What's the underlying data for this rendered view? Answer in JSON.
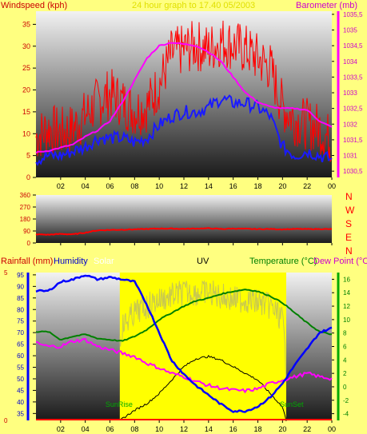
{
  "colors": {
    "background": "#ffff80",
    "wind_label": "#cc0000",
    "baro_label": "#cc00cc",
    "wind_avg": "#1a1aff",
    "wind_gust": "#ff0000",
    "barometer": "#ff00ff",
    "direction": "#ff0000",
    "humidity": "#0000ff",
    "solar": "#ffff00",
    "uv": "#000000",
    "temperature": "#008000",
    "dew_point": "#ff00ff",
    "rainfall": "#ff0000"
  },
  "top": {
    "left_title": "Windspeed (kph)",
    "center_title": "24 hour graph to 17.40 05/2003",
    "right_title": "Barometer (mb)"
  },
  "middle": {
    "dir_labels": [
      "N",
      "W",
      "S",
      "E",
      "N"
    ]
  },
  "bottom": {
    "rain_title": "Rainfall (mm)",
    "humidity_title": "Humidity",
    "solar_title": "Solar",
    "uv_title": "UV",
    "temp_title": "Temperature (°C)",
    "dew_title": "Dew Point (°C)",
    "sunrise_label": "SunRise",
    "sunset_label": "SunSet"
  },
  "chart_data": [
    {
      "type": "line",
      "name": "wind-barometer",
      "x_ticks": [
        "02",
        "04",
        "06",
        "08",
        "10",
        "12",
        "14",
        "16",
        "18",
        "20",
        "22",
        "00"
      ],
      "y_left": {
        "label": "Windspeed (kph)",
        "ylim": [
          0,
          38
        ],
        "ticks": [
          0,
          5,
          10,
          15,
          20,
          25,
          30,
          35
        ]
      },
      "y_right": {
        "label": "Barometer (mb)",
        "ylim": [
          1030.3,
          1035.6
        ],
        "ticks": [
          "1030,5",
          "1031",
          "1031,5",
          "1032",
          "1032,5",
          "1033",
          "1033,5",
          "1034",
          "1034,5",
          "1035",
          "1035,5"
        ]
      },
      "series": [
        {
          "name": "Wind gust",
          "x": [
            0,
            1,
            2,
            3,
            4,
            5,
            6,
            7,
            8,
            9,
            10,
            11,
            12,
            13,
            14,
            15,
            16,
            17,
            18,
            19,
            20,
            21,
            22,
            23,
            24
          ],
          "values": [
            8,
            10,
            9,
            10,
            13,
            16,
            18,
            16,
            14,
            15,
            20,
            27,
            28,
            29,
            28,
            30,
            29,
            28,
            26,
            24,
            15,
            12,
            11,
            10,
            7
          ]
        },
        {
          "name": "Wind speed",
          "x": [
            0,
            1,
            2,
            3,
            4,
            5,
            6,
            7,
            8,
            9,
            10,
            11,
            12,
            13,
            14,
            15,
            16,
            17,
            18,
            19,
            20,
            21,
            22,
            23,
            24
          ],
          "values": [
            4,
            5,
            5,
            6,
            7,
            9,
            9,
            9,
            8,
            9,
            12,
            14,
            15,
            15,
            16,
            18,
            17,
            17,
            16,
            14,
            7,
            5,
            6,
            5,
            4
          ]
        },
        {
          "name": "Barometer",
          "x": [
            0,
            1,
            2,
            3,
            4,
            5,
            6,
            7,
            8,
            9,
            10,
            11,
            12,
            13,
            14,
            15,
            16,
            17,
            18,
            19,
            20,
            21,
            22,
            23,
            24
          ],
          "values": [
            1031.1,
            1031.15,
            1031.25,
            1031.35,
            1031.6,
            1031.8,
            1032.1,
            1032.7,
            1033.4,
            1034.1,
            1034.5,
            1034.6,
            1034.55,
            1034.5,
            1034.3,
            1034.0,
            1033.5,
            1033.0,
            1032.7,
            1032.55,
            1032.5,
            1032.5,
            1032.45,
            1032.1,
            1031.9
          ]
        }
      ]
    },
    {
      "type": "line",
      "name": "wind-direction",
      "x_ticks": [
        "02",
        "04",
        "06",
        "08",
        "10",
        "12",
        "14",
        "16",
        "18",
        "20",
        "22",
        "00"
      ],
      "y_left": {
        "ylim": [
          0,
          360
        ],
        "ticks": [
          0,
          90,
          180,
          270,
          360
        ]
      },
      "series": [
        {
          "name": "Wind direction",
          "x": [
            0,
            1,
            2,
            3,
            4,
            5,
            6,
            7,
            8,
            9,
            10,
            11,
            12,
            13,
            14,
            15,
            16,
            17,
            18,
            19,
            20,
            21,
            22,
            23,
            24
          ],
          "values": [
            65,
            62,
            68,
            65,
            78,
            95,
            98,
            100,
            102,
            105,
            108,
            108,
            106,
            108,
            110,
            105,
            108,
            106,
            104,
            105,
            103,
            105,
            104,
            105,
            103
          ]
        }
      ]
    },
    {
      "type": "line",
      "name": "humidity-temperature",
      "x_ticks": [
        "02",
        "04",
        "06",
        "08",
        "10",
        "12",
        "14",
        "16",
        "18",
        "20",
        "22",
        "00"
      ],
      "y_left_rain": {
        "ylim": [
          0,
          5
        ],
        "ticks": [
          0,
          5
        ]
      },
      "y_left_humidity": {
        "ylim": [
          32,
          96
        ],
        "ticks": [
          35,
          40,
          45,
          50,
          55,
          60,
          65,
          70,
          75,
          80,
          85,
          90,
          95
        ]
      },
      "y_right": {
        "ylim": [
          -5,
          17
        ],
        "ticks": [
          -4,
          -2,
          0,
          2,
          4,
          6,
          8,
          10,
          12,
          14,
          16
        ]
      },
      "sun": {
        "rise_hour": 6.8,
        "set_hour": 20.3
      },
      "series": [
        {
          "name": "Humidity",
          "x": [
            0,
            1,
            2,
            3,
            4,
            5,
            6,
            7,
            8,
            9,
            10,
            11,
            12,
            13,
            14,
            15,
            16,
            17,
            18,
            19,
            20,
            21,
            22,
            23,
            24
          ],
          "values": [
            88,
            88,
            92,
            93,
            95,
            93,
            94,
            93,
            92,
            82,
            70,
            58,
            52,
            47,
            43,
            39,
            36,
            36,
            38,
            42,
            48,
            56,
            63,
            70,
            72
          ]
        },
        {
          "name": "Temperature",
          "x": [
            0,
            1,
            2,
            3,
            4,
            5,
            6,
            7,
            8,
            9,
            10,
            11,
            12,
            13,
            14,
            15,
            16,
            17,
            18,
            19,
            20,
            21,
            22,
            23,
            24
          ],
          "values": [
            8.2,
            8.2,
            7.0,
            7.5,
            7.8,
            7.2,
            7.0,
            6.8,
            7.5,
            8.5,
            10,
            11,
            12,
            12.8,
            13.2,
            13.8,
            14.2,
            14.5,
            14.2,
            13.5,
            12.5,
            11,
            9.5,
            8.2,
            7.8
          ]
        },
        {
          "name": "Dew Point",
          "x": [
            0,
            1,
            2,
            3,
            4,
            5,
            6,
            7,
            8,
            9,
            10,
            11,
            12,
            13,
            14,
            15,
            16,
            17,
            18,
            19,
            20,
            21,
            22,
            23,
            24
          ],
          "values": [
            6.5,
            6.0,
            6.0,
            6.8,
            7.0,
            6.0,
            5.5,
            5.0,
            4.5,
            3.5,
            2.8,
            2.0,
            1.5,
            0.8,
            0.2,
            -0.2,
            -0.5,
            -0.6,
            -0.3,
            0.5,
            1.0,
            1.5,
            2.0,
            1.5,
            1.2
          ]
        },
        {
          "name": "Solar",
          "x": [
            6.5,
            7,
            8,
            9,
            10,
            11,
            12,
            13,
            14,
            15,
            16,
            17,
            18,
            19,
            20,
            20.3
          ],
          "values": [
            5,
            11,
            13,
            14,
            15,
            15.5,
            16,
            16,
            16,
            15.5,
            15,
            15,
            14.5,
            14,
            12,
            5
          ]
        },
        {
          "name": "UV",
          "x": [
            6.8,
            8,
            9,
            10,
            11,
            12,
            13,
            14,
            15,
            16,
            17,
            18,
            19,
            20,
            20.3
          ],
          "values": [
            -5,
            -3.5,
            -2.5,
            -1,
            1,
            3,
            4.2,
            4.5,
            4,
            3,
            2,
            1,
            -1,
            -3,
            -5
          ]
        },
        {
          "name": "Rainfall",
          "x": [
            0,
            24
          ],
          "values": [
            0,
            0
          ]
        }
      ]
    }
  ]
}
